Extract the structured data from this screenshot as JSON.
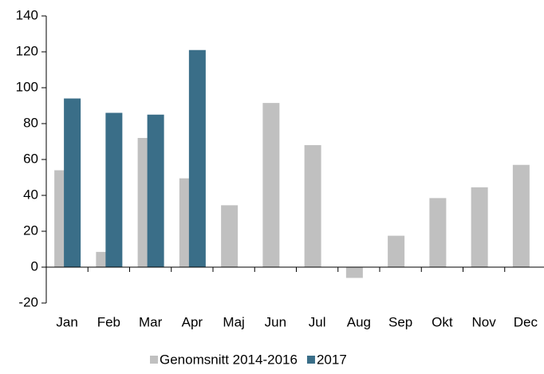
{
  "chart_data": {
    "type": "bar",
    "categories": [
      "Jan",
      "Feb",
      "Mar",
      "Apr",
      "Maj",
      "Jun",
      "Jul",
      "Aug",
      "Sep",
      "Okt",
      "Nov",
      "Dec"
    ],
    "series": [
      {
        "name": "Genomsnitt 2014-2016",
        "color": "#c0c0c0",
        "values": [
          54,
          8.5,
          72,
          49.5,
          34.5,
          91.5,
          68,
          -6,
          17.5,
          38.5,
          44.5,
          57
        ]
      },
      {
        "name": "2017",
        "color": "#3a6e88",
        "values": [
          94,
          86,
          85,
          121,
          null,
          null,
          null,
          null,
          null,
          null,
          null,
          null
        ]
      }
    ],
    "ylim": [
      -20,
      140
    ],
    "yticks": [
      -20,
      0,
      20,
      40,
      60,
      80,
      100,
      120,
      140
    ],
    "grid": false,
    "legend": "bottom"
  }
}
